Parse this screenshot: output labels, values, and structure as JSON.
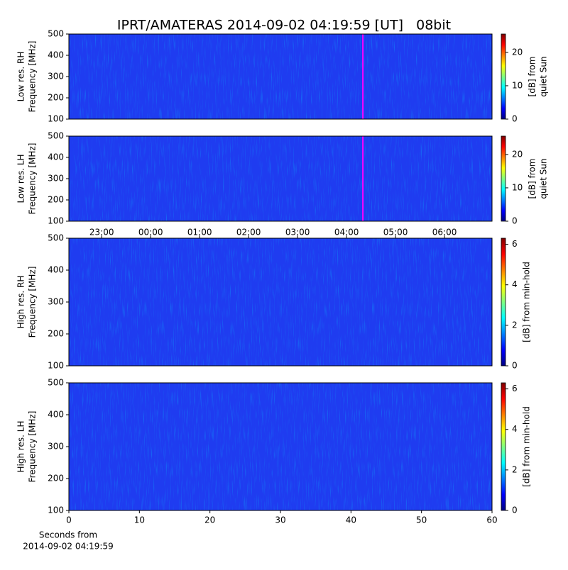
{
  "chart_data": [
    {
      "type": "heatmap",
      "title": "IPRT/AMATERAS 2014-09-02 04:19:59 [UT]   08bit",
      "ylabel": [
        "Low res. RH",
        "Frequency [MHz]"
      ],
      "ylim": [
        100,
        500
      ],
      "yticks": [
        100,
        200,
        300,
        400,
        500
      ],
      "xlim": [
        -1.67,
        6.97
      ],
      "marker": {
        "x": 4.333,
        "color": "#ff00ff"
      },
      "colorbar": {
        "label": [
          "[dB] from",
          "quiet Sun"
        ],
        "lim": [
          0,
          25.5
        ],
        "ticks": [
          0,
          10,
          20
        ]
      }
    },
    {
      "type": "heatmap",
      "ylabel": [
        "Low res. LH",
        "Frequency [MHz]"
      ],
      "ylim": [
        100,
        500
      ],
      "yticks": [
        100,
        200,
        300,
        400,
        500
      ],
      "xlim": [
        -1.67,
        6.97
      ],
      "xticks": [
        {
          "value": -1,
          "label": "23:00"
        },
        {
          "value": 0,
          "label": "00:00"
        },
        {
          "value": 1,
          "label": "01:00"
        },
        {
          "value": 2,
          "label": "02:00"
        },
        {
          "value": 3,
          "label": "03:00"
        },
        {
          "value": 4,
          "label": "04:00"
        },
        {
          "value": 5,
          "label": "05:00"
        },
        {
          "value": 6,
          "label": "06:00"
        }
      ],
      "marker": {
        "x": 4.333,
        "color": "#ff00ff"
      },
      "colorbar": {
        "label": [
          "[dB] from",
          "quiet Sun"
        ],
        "lim": [
          0,
          25.5
        ],
        "ticks": [
          0,
          10,
          20
        ]
      }
    },
    {
      "type": "heatmap",
      "ylabel": [
        "High res. RH",
        "Frequency [MHz]"
      ],
      "ylim": [
        100,
        500
      ],
      "yticks": [
        100,
        200,
        300,
        400,
        500
      ],
      "xlim": [
        0,
        60
      ],
      "colorbar": {
        "label": [
          "[dB] from min-hold"
        ],
        "lim": [
          0,
          6.3
        ],
        "ticks": [
          0,
          2,
          4,
          6
        ]
      }
    },
    {
      "type": "heatmap",
      "ylabel": [
        "High res. LH",
        "Frequency [MHz]"
      ],
      "ylim": [
        100,
        500
      ],
      "yticks": [
        100,
        200,
        300,
        400,
        500
      ],
      "xlim": [
        0,
        60
      ],
      "xticks": [
        0,
        10,
        20,
        30,
        40,
        50,
        60
      ],
      "xlabel": [
        "Seconds from",
        "2014-09-02 04:19:59"
      ],
      "colorbar": {
        "label": [
          "[dB] from min-hold"
        ],
        "lim": [
          0,
          6.3
        ],
        "ticks": [
          0,
          2,
          4,
          6
        ]
      }
    }
  ]
}
